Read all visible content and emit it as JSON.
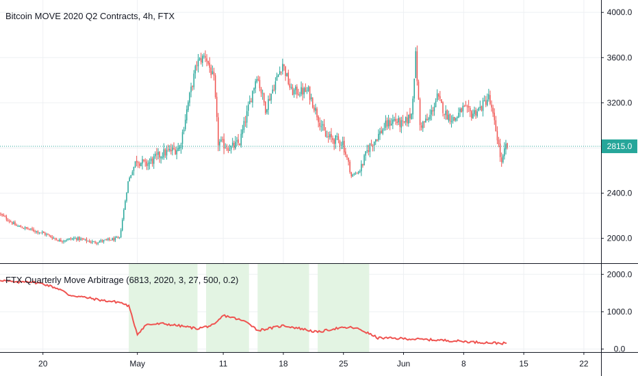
{
  "colors": {
    "up": "#26a69a",
    "down": "#ef5350",
    "grid": "#eef0f3",
    "last_price": "#26a69a",
    "indicator_line": "#ef5350",
    "highlight": "#e3f4e3",
    "axis_border": "#131722"
  },
  "chart_data": [
    {
      "type": "candlestick",
      "title": "Bitcoin MOVE 2020 Q2 Contracts, 4h, FTX",
      "interval_hours": 4,
      "start": "2020-04-15",
      "x_range": [
        "2020-04-15",
        "2020-06-24"
      ],
      "ylim": [
        1780,
        4110
      ],
      "y_ticks": [
        "4000.0",
        "3600.0",
        "3200.0",
        "2400.0",
        "2000.0"
      ],
      "x_ticks": [
        {
          "date": "2020-04-20",
          "label": "20"
        },
        {
          "date": "2020-05-01",
          "label": "May"
        },
        {
          "date": "2020-05-11",
          "label": "11"
        },
        {
          "date": "2020-05-18",
          "label": "18"
        },
        {
          "date": "2020-05-25",
          "label": "25"
        },
        {
          "date": "2020-06-01",
          "label": "Jun"
        },
        {
          "date": "2020-06-08",
          "label": "8"
        },
        {
          "date": "2020-06-15",
          "label": "15"
        },
        {
          "date": "2020-06-22",
          "label": "22"
        }
      ],
      "last_price": 2815.0,
      "last_price_label": "2815.0",
      "anchors": [
        [
          "2020-04-15",
          2220
        ],
        [
          "2020-04-17",
          2110
        ],
        [
          "2020-04-20",
          2050
        ],
        [
          "2020-04-22",
          1980
        ],
        [
          "2020-04-24",
          2000
        ],
        [
          "2020-04-26",
          1965
        ],
        [
          "2020-04-29",
          2000
        ],
        [
          "2020-04-30",
          2500
        ],
        [
          "2020-05-01",
          2700
        ],
        [
          "2020-05-02",
          2650
        ],
        [
          "2020-05-04",
          2750
        ],
        [
          "2020-05-06",
          2800
        ],
        [
          "2020-05-07",
          3200
        ],
        [
          "2020-05-08",
          3550
        ],
        [
          "2020-05-09",
          3620
        ],
        [
          "2020-05-10",
          3400
        ],
        [
          "2020-05-10 12:00",
          2850
        ],
        [
          "2020-05-12",
          2800
        ],
        [
          "2020-05-13",
          2850
        ],
        [
          "2020-05-15",
          3450
        ],
        [
          "2020-05-16",
          3150
        ],
        [
          "2020-05-18",
          3550
        ],
        [
          "2020-05-19",
          3300
        ],
        [
          "2020-05-21",
          3300
        ],
        [
          "2020-05-22",
          3100
        ],
        [
          "2020-05-23",
          2900
        ],
        [
          "2020-05-25",
          2850
        ],
        [
          "2020-05-26",
          2550
        ],
        [
          "2020-05-27",
          2600
        ],
        [
          "2020-05-28",
          2800
        ],
        [
          "2020-05-30",
          3000
        ],
        [
          "2020-05-31",
          3050
        ],
        [
          "2020-06-01",
          3000
        ],
        [
          "2020-06-02",
          3100
        ],
        [
          "2020-06-02 12:00",
          3620
        ],
        [
          "2020-06-03",
          3000
        ],
        [
          "2020-06-04",
          3050
        ],
        [
          "2020-06-05",
          3250
        ],
        [
          "2020-06-06",
          3100
        ],
        [
          "2020-06-07",
          3050
        ],
        [
          "2020-06-08",
          3150
        ],
        [
          "2020-06-09",
          3100
        ],
        [
          "2020-06-10",
          3150
        ],
        [
          "2020-06-11",
          3250
        ],
        [
          "2020-06-12",
          2900
        ],
        [
          "2020-06-12 12:00",
          2650
        ],
        [
          "2020-06-13",
          2815
        ]
      ]
    },
    {
      "type": "line",
      "title": "FTX Quarterly Move Arbitrage (6813, 2020, 3, 27, 500, 0.2)",
      "ylim": [
        -80,
        2280
      ],
      "y_ticks": [
        "2000.0",
        "1000.0",
        "0.0"
      ],
      "series": [
        {
          "points": [
            [
              "2020-04-15",
              1850
            ],
            [
              "2020-04-17",
              1780
            ],
            [
              "2020-04-18",
              1820
            ],
            [
              "2020-04-20",
              1750
            ],
            [
              "2020-04-22",
              1600
            ],
            [
              "2020-04-23",
              1450
            ],
            [
              "2020-04-25",
              1380
            ],
            [
              "2020-04-27",
              1300
            ],
            [
              "2020-04-29",
              1250
            ],
            [
              "2020-04-30",
              1150
            ],
            [
              "2020-05-01",
              400
            ],
            [
              "2020-05-02",
              650
            ],
            [
              "2020-05-04",
              680
            ],
            [
              "2020-05-06",
              620
            ],
            [
              "2020-05-08",
              550
            ],
            [
              "2020-05-10",
              650
            ],
            [
              "2020-05-11",
              900
            ],
            [
              "2020-05-12",
              850
            ],
            [
              "2020-05-14",
              700
            ],
            [
              "2020-05-15",
              500
            ],
            [
              "2020-05-17",
              580
            ],
            [
              "2020-05-18",
              630
            ],
            [
              "2020-05-20",
              550
            ],
            [
              "2020-05-22",
              450
            ],
            [
              "2020-05-24",
              550
            ],
            [
              "2020-05-26",
              580
            ],
            [
              "2020-05-27",
              520
            ],
            [
              "2020-05-29",
              300
            ],
            [
              "2020-06-01",
              280
            ],
            [
              "2020-06-03",
              260
            ],
            [
              "2020-06-05",
              240
            ],
            [
              "2020-06-07",
              220
            ],
            [
              "2020-06-09",
              190
            ],
            [
              "2020-06-11",
              170
            ],
            [
              "2020-06-13",
              150
            ]
          ]
        }
      ],
      "highlight_ranges": [
        [
          "2020-04-30",
          "2020-05-08"
        ],
        [
          "2020-05-09",
          "2020-05-14"
        ],
        [
          "2020-05-15",
          "2020-05-18"
        ],
        [
          "2020-05-18",
          "2020-05-21"
        ],
        [
          "2020-05-22",
          "2020-05-28"
        ]
      ]
    }
  ]
}
